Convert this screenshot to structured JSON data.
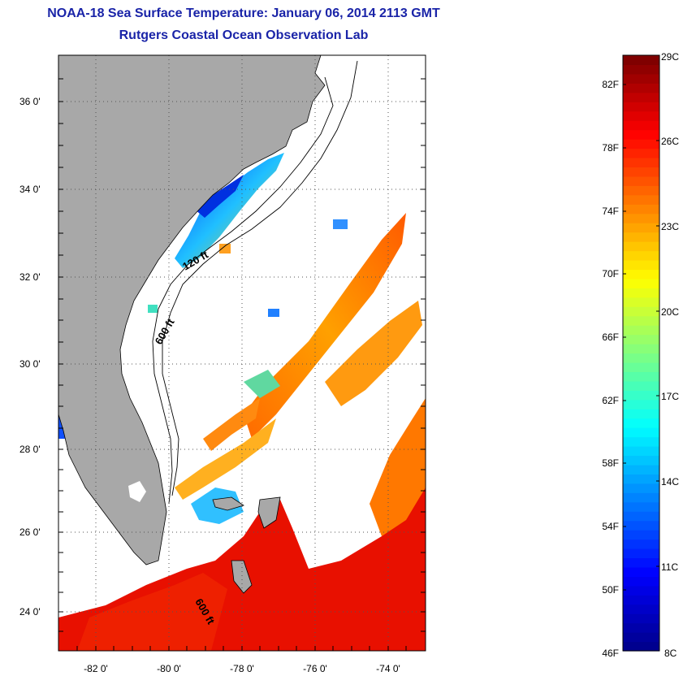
{
  "title_line1": "NOAA-18 Sea Surface Temperature:  January 06, 2014 2113 GMT",
  "title_line2": "Rutgers Coastal Ocean Observation Lab",
  "map": {
    "lat_range": [
      23,
      37.2
    ],
    "lon_range": [
      -83,
      -73
    ],
    "lat_ticks": [
      "36 0'",
      "34 0'",
      "32 0'",
      "30 0'",
      "28 0'",
      "26 0'",
      "24 0'"
    ],
    "lon_ticks": [
      "-82 0'",
      "-80 0'",
      "-78 0'",
      "-76 0'",
      "-74 0'"
    ],
    "grid": "dotted",
    "land_color": "#a8a8a8",
    "cloud_color": "#ffffff",
    "contour_labels": [
      "120 ft",
      "600 ft",
      "600 ft"
    ]
  },
  "colorbar": {
    "celsius_range": [
      8,
      29
    ],
    "fahrenheit_range": [
      46,
      84
    ],
    "celsius_labels": [
      "29C",
      "26C",
      "23C",
      "20C",
      "17C",
      "14C",
      "11C",
      "8C"
    ],
    "fahrenheit_labels": [
      "82F",
      "78F",
      "74F",
      "70F",
      "66F",
      "62F",
      "58F",
      "54F",
      "50F",
      "46F"
    ],
    "colors": [
      "#00008f",
      "#0000ff",
      "#0080ff",
      "#00ffff",
      "#80ff80",
      "#ffff00",
      "#ff8000",
      "#ff0000",
      "#800000"
    ]
  }
}
